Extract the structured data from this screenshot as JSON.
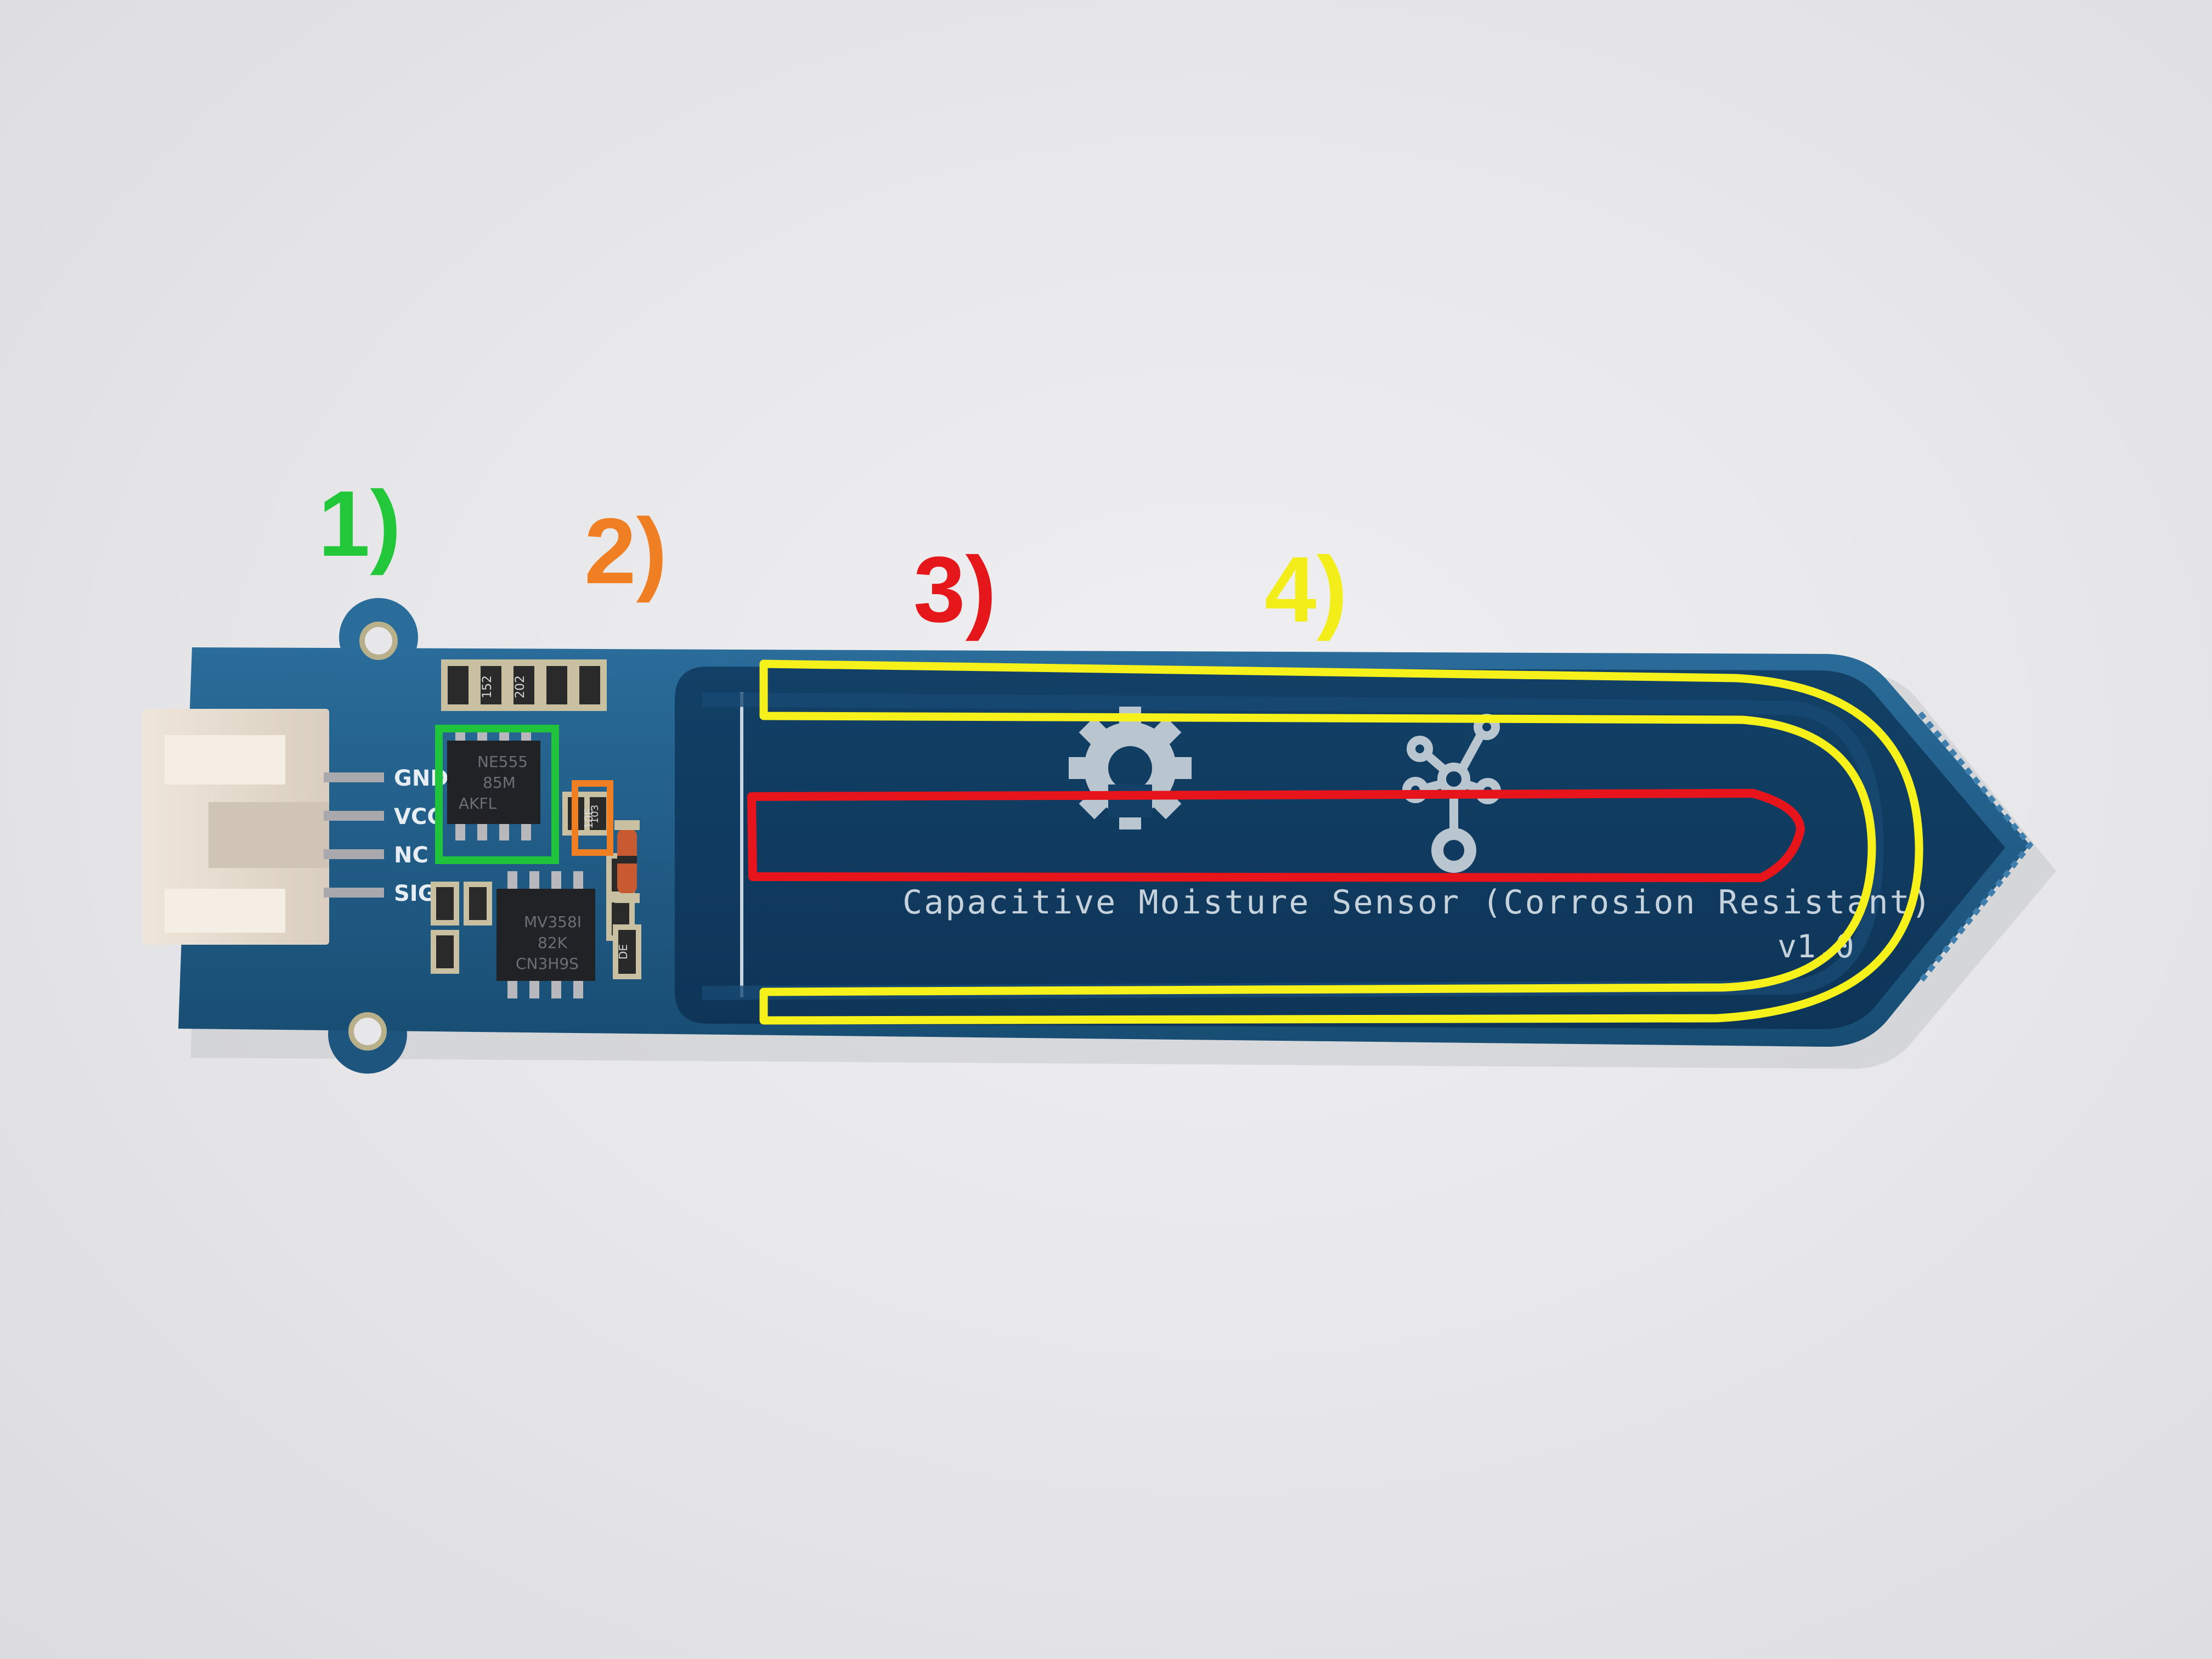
{
  "callouts": [
    {
      "label": "1)",
      "color": "#22c83a"
    },
    {
      "label": "2)",
      "color": "#f07e22"
    },
    {
      "label": "3)",
      "color": "#e5171b"
    },
    {
      "label": "4)",
      "color": "#f3ee1a"
    }
  ],
  "board": {
    "silkscreen_title": "Capacitive Moisture Sensor (Corrosion Resistant)",
    "version": "v1.0",
    "pcb_color": "#1d5a86",
    "pins": [
      "GND",
      "VCC",
      "NC",
      "SIG"
    ],
    "ic_top_marking": [
      "NE555",
      "85M",
      "AKFL"
    ],
    "ic_bottom_marking": [
      "MV358I",
      "82K",
      "CN3H9S"
    ],
    "resistor_codes": [
      "152",
      "202",
      "103",
      "10E",
      "DE"
    ]
  },
  "highlight_colors": {
    "ic_box": "#1fc43a",
    "diode_box": "#f07e22",
    "inner_trace": "#e8141b",
    "outer_trace": "#f6f11a"
  }
}
